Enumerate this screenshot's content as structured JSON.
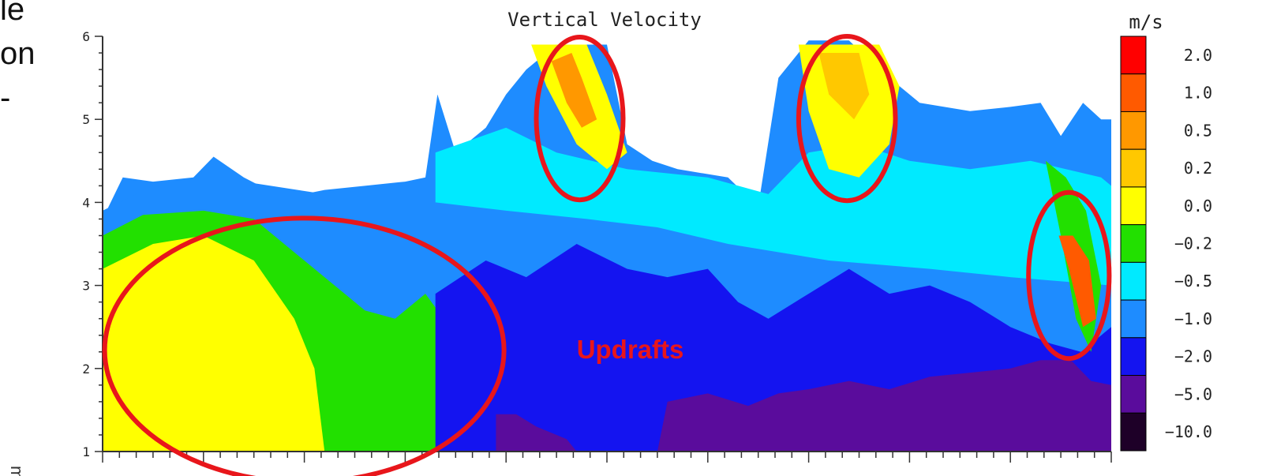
{
  "slide_fragments": [
    "le",
    "on",
    "-"
  ],
  "axis_fragment": "m)",
  "annotation": "Updrafts",
  "chart_data": {
    "type": "heatmap",
    "title": "Vertical Velocity",
    "colorbar_unit": "m/s",
    "ylim": [
      1,
      6
    ],
    "y_ticks": [
      "1",
      "2",
      "3",
      "4",
      "5",
      "6"
    ],
    "colorbar_levels": [
      "2.0",
      "1.0",
      "0.5",
      "0.2",
      "0.0",
      "−0.2",
      "−0.5",
      "−1.0",
      "−2.0",
      "−5.0",
      "−10.0"
    ],
    "colorbar_colors": [
      "#ff0000",
      "#ff5a00",
      "#ff9800",
      "#ffc800",
      "#ffff00",
      "#22e000",
      "#00eaff",
      "#1e8cff",
      "#1414f0",
      "#5a0c9c",
      "#1e0028"
    ],
    "highlight_color": "#e8161b",
    "echo_top": [
      {
        "x": 0.0,
        "top": 3.8
      },
      {
        "x": 0.02,
        "top": 4.3
      },
      {
        "x": 0.05,
        "top": 4.25
      },
      {
        "x": 0.09,
        "top": 4.3
      },
      {
        "x": 0.11,
        "top": 4.55
      },
      {
        "x": 0.14,
        "top": 4.3
      },
      {
        "x": 0.18,
        "top": 4.05
      },
      {
        "x": 0.22,
        "top": 4.15
      },
      {
        "x": 0.26,
        "top": 4.2
      },
      {
        "x": 0.3,
        "top": 4.25
      },
      {
        "x": 0.32,
        "top": 4.3
      },
      {
        "x": 0.332,
        "top": 5.3
      },
      {
        "x": 0.35,
        "top": 4.6
      },
      {
        "x": 0.38,
        "top": 4.9
      },
      {
        "x": 0.4,
        "top": 5.3
      },
      {
        "x": 0.42,
        "top": 5.6
      },
      {
        "x": 0.45,
        "top": 5.9
      },
      {
        "x": 0.5,
        "top": 5.9
      },
      {
        "x": 0.52,
        "top": 4.7
      },
      {
        "x": 0.545,
        "top": 4.5
      },
      {
        "x": 0.57,
        "top": 4.4
      },
      {
        "x": 0.62,
        "top": 4.3
      },
      {
        "x": 0.65,
        "top": 3.95
      },
      {
        "x": 0.67,
        "top": 5.5
      },
      {
        "x": 0.7,
        "top": 5.95
      },
      {
        "x": 0.74,
        "top": 5.95
      },
      {
        "x": 0.77,
        "top": 5.6
      },
      {
        "x": 0.81,
        "top": 5.2
      },
      {
        "x": 0.86,
        "top": 5.1
      },
      {
        "x": 0.9,
        "top": 5.15
      },
      {
        "x": 0.93,
        "top": 5.2
      },
      {
        "x": 0.95,
        "top": 4.8
      },
      {
        "x": 0.972,
        "top": 5.2
      },
      {
        "x": 0.99,
        "top": 5.0
      },
      {
        "x": 1.0,
        "top": 5.0
      }
    ],
    "regions": [
      {
        "level": "−1.0",
        "points": [
          [
            0.0,
            3.9
          ],
          [
            0.05,
            4.2
          ],
          [
            0.14,
            4.25
          ],
          [
            0.22,
            4.1
          ],
          [
            0.3,
            4.2
          ],
          [
            0.33,
            4.2
          ],
          [
            0.33,
            1.0
          ],
          [
            0.0,
            1.0
          ]
        ]
      },
      {
        "level": "−0.2",
        "points": [
          [
            0.0,
            3.6
          ],
          [
            0.04,
            3.85
          ],
          [
            0.1,
            3.9
          ],
          [
            0.15,
            3.8
          ],
          [
            0.18,
            3.5
          ],
          [
            0.22,
            3.1
          ],
          [
            0.26,
            2.7
          ],
          [
            0.29,
            2.6
          ],
          [
            0.32,
            2.9
          ],
          [
            0.35,
            2.4
          ],
          [
            0.38,
            1.8
          ],
          [
            0.4,
            1.0
          ],
          [
            0.0,
            1.0
          ]
        ]
      },
      {
        "level": "0.0",
        "points": [
          [
            0.0,
            3.2
          ],
          [
            0.05,
            3.5
          ],
          [
            0.1,
            3.6
          ],
          [
            0.15,
            3.3
          ],
          [
            0.19,
            2.6
          ],
          [
            0.21,
            2.0
          ],
          [
            0.22,
            1.0
          ],
          [
            0.0,
            1.0
          ]
        ]
      },
      {
        "level": "−0.5",
        "points": [
          [
            0.33,
            4.6
          ],
          [
            0.4,
            4.9
          ],
          [
            0.45,
            4.6
          ],
          [
            0.52,
            4.4
          ],
          [
            0.6,
            4.3
          ],
          [
            0.66,
            4.1
          ],
          [
            0.7,
            4.6
          ],
          [
            0.75,
            4.7
          ],
          [
            0.8,
            4.5
          ],
          [
            0.86,
            4.4
          ],
          [
            0.92,
            4.5
          ],
          [
            0.99,
            4.3
          ],
          [
            1.0,
            4.2
          ],
          [
            1.0,
            3.0
          ],
          [
            0.9,
            3.1
          ],
          [
            0.82,
            3.2
          ],
          [
            0.72,
            3.3
          ],
          [
            0.62,
            3.5
          ],
          [
            0.55,
            3.7
          ],
          [
            0.48,
            3.8
          ],
          [
            0.4,
            3.9
          ],
          [
            0.33,
            4.0
          ]
        ]
      },
      {
        "level": "−2.0",
        "points": [
          [
            0.33,
            2.9
          ],
          [
            0.38,
            3.3
          ],
          [
            0.42,
            3.1
          ],
          [
            0.47,
            3.5
          ],
          [
            0.52,
            3.2
          ],
          [
            0.56,
            3.1
          ],
          [
            0.6,
            3.2
          ],
          [
            0.63,
            2.8
          ],
          [
            0.66,
            2.6
          ],
          [
            0.7,
            2.9
          ],
          [
            0.74,
            3.2
          ],
          [
            0.78,
            2.9
          ],
          [
            0.82,
            3.0
          ],
          [
            0.86,
            2.8
          ],
          [
            0.9,
            2.5
          ],
          [
            0.94,
            2.3
          ],
          [
            0.97,
            2.2
          ],
          [
            1.0,
            2.5
          ],
          [
            1.0,
            1.0
          ],
          [
            0.33,
            1.0
          ]
        ]
      },
      {
        "level": "−5.0",
        "points": [
          [
            0.39,
            1.0
          ],
          [
            0.39,
            1.45
          ],
          [
            0.41,
            1.45
          ],
          [
            0.43,
            1.3
          ],
          [
            0.46,
            1.15
          ],
          [
            0.47,
            1.0
          ]
        ]
      },
      {
        "level": "−5.0",
        "points": [
          [
            0.55,
            1.0
          ],
          [
            0.56,
            1.6
          ],
          [
            0.6,
            1.7
          ],
          [
            0.64,
            1.55
          ],
          [
            0.67,
            1.7
          ],
          [
            0.7,
            1.75
          ],
          [
            0.74,
            1.85
          ],
          [
            0.78,
            1.75
          ],
          [
            0.82,
            1.9
          ],
          [
            0.86,
            1.95
          ],
          [
            0.9,
            2.0
          ],
          [
            0.93,
            2.1
          ],
          [
            0.96,
            2.1
          ],
          [
            0.98,
            1.85
          ],
          [
            1.0,
            1.8
          ],
          [
            1.0,
            1.0
          ]
        ]
      },
      {
        "level": "0.0",
        "points": [
          [
            0.425,
            5.9
          ],
          [
            0.44,
            5.4
          ],
          [
            0.47,
            4.7
          ],
          [
            0.5,
            4.4
          ],
          [
            0.52,
            4.6
          ],
          [
            0.5,
            5.3
          ],
          [
            0.48,
            5.9
          ]
        ]
      },
      {
        "level": "0.5",
        "points": [
          [
            0.445,
            5.7
          ],
          [
            0.46,
            5.2
          ],
          [
            0.475,
            4.9
          ],
          [
            0.49,
            5.0
          ],
          [
            0.475,
            5.5
          ],
          [
            0.465,
            5.8
          ]
        ]
      },
      {
        "level": "0.0",
        "points": [
          [
            0.69,
            5.9
          ],
          [
            0.7,
            5.1
          ],
          [
            0.72,
            4.4
          ],
          [
            0.75,
            4.3
          ],
          [
            0.78,
            4.7
          ],
          [
            0.79,
            5.4
          ],
          [
            0.77,
            5.9
          ]
        ]
      },
      {
        "level": "0.2",
        "points": [
          [
            0.71,
            5.8
          ],
          [
            0.72,
            5.3
          ],
          [
            0.745,
            5.0
          ],
          [
            0.76,
            5.3
          ],
          [
            0.75,
            5.8
          ]
        ]
      },
      {
        "level": "−0.2",
        "points": [
          [
            0.935,
            4.5
          ],
          [
            0.95,
            3.6
          ],
          [
            0.965,
            2.6
          ],
          [
            0.98,
            2.2
          ],
          [
            0.99,
            3.0
          ],
          [
            0.975,
            3.9
          ],
          [
            0.955,
            4.3
          ]
        ]
      },
      {
        "level": "1.0",
        "points": [
          [
            0.948,
            3.6
          ],
          [
            0.958,
            3.2
          ],
          [
            0.972,
            2.5
          ],
          [
            0.985,
            2.6
          ],
          [
            0.978,
            3.3
          ],
          [
            0.962,
            3.6
          ]
        ]
      }
    ],
    "highlights": [
      {
        "cx": 0.2,
        "cy": 2.22,
        "rx": 0.198,
        "ry": 1.59
      },
      {
        "cx": 0.473,
        "cy": 5.01,
        "rx": 0.043,
        "ry": 0.98
      },
      {
        "cx": 0.738,
        "cy": 5.01,
        "rx": 0.048,
        "ry": 0.99
      },
      {
        "cx": 0.958,
        "cy": 3.12,
        "rx": 0.04,
        "ry": 1.0
      }
    ],
    "annotation_pos": {
      "x": 0.47,
      "y": 2.12
    }
  }
}
